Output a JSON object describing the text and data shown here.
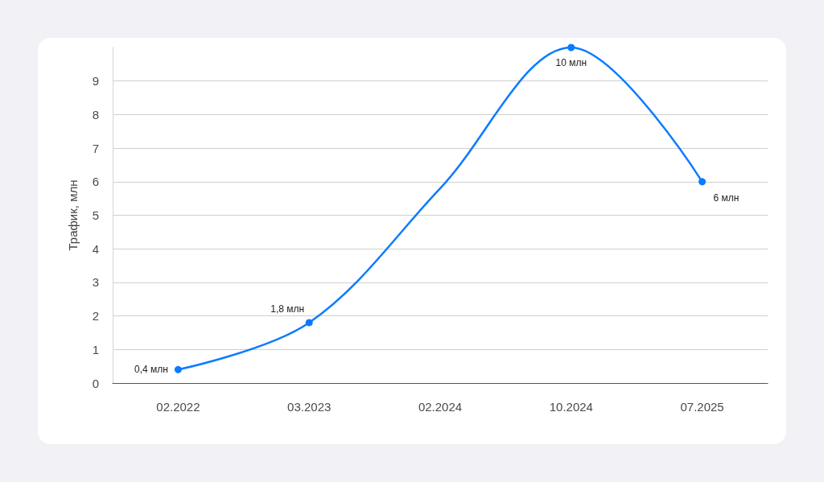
{
  "chart_data": {
    "type": "line",
    "ylabel": "Трафик, млн",
    "categories": [
      "02.2022",
      "03.2023",
      "02.2024",
      "10.2024",
      "07.2025"
    ],
    "series": [
      {
        "color": "#0b7bff",
        "values": [
          0.4,
          1.8,
          5.8,
          10,
          6
        ],
        "value_labels": [
          "0,4 млн",
          "1,8 млн",
          null,
          "10 млн",
          "6 млн"
        ]
      }
    ],
    "ylim": [
      0,
      10
    ],
    "yticks": [
      0,
      1,
      2,
      3,
      4,
      5,
      6,
      7,
      8,
      9
    ],
    "grid": "y",
    "marker": "circle",
    "line_style": "solid"
  }
}
